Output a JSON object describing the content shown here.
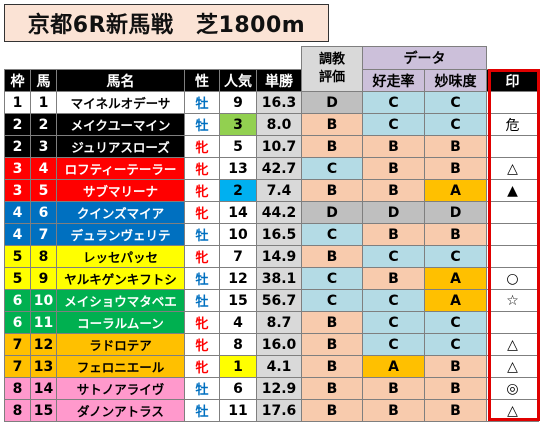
{
  "title": "京都6R新馬戦　芝1800m",
  "header": {
    "group_choukyou": [
      "調教",
      "評価"
    ],
    "group_data": "データ",
    "cols": {
      "waku": "枠",
      "uma": "馬",
      "name": "馬名",
      "sex": "性",
      "ninki": "人気",
      "tansho": "単勝",
      "koso": "好走率",
      "mimi": "妙味度",
      "mark": "印"
    }
  },
  "colors": {
    "waku": {
      "1": {
        "bg": "#ffffff",
        "fg": "#000000"
      },
      "2": {
        "bg": "#000000",
        "fg": "#ffffff"
      },
      "3": {
        "bg": "#ff0000",
        "fg": "#ffffff"
      },
      "4": {
        "bg": "#0070c0",
        "fg": "#ffffff"
      },
      "5": {
        "bg": "#ffff00",
        "fg": "#000000"
      },
      "6": {
        "bg": "#00b050",
        "fg": "#ffffff"
      },
      "7": {
        "bg": "#ffc000",
        "fg": "#000000"
      },
      "8": {
        "bg": "#ff99cc",
        "fg": "#000000"
      }
    },
    "sex": {
      "牡": "#0070c0",
      "牝": "#ff0000"
    },
    "ninki_highlight": {
      "2": "#00b0f0",
      "3": "#92d050",
      "1": "#ffff00"
    },
    "tansho_bg": "#d9d9d9",
    "grade": {
      "A": "#ffc000",
      "B": "#f8cbad",
      "C": "#b4dbe5",
      "D": "#bfbfbf"
    }
  },
  "rows": [
    {
      "waku": "1",
      "uma": "1",
      "name": "マイネルオデーサ",
      "sex": "牡",
      "ninki": "9",
      "tansho": "16.3",
      "eval": "D",
      "koso": "C",
      "mimi": "C",
      "mark": ""
    },
    {
      "waku": "2",
      "uma": "2",
      "name": "メイクユーマイン",
      "sex": "牡",
      "ninki": "3",
      "tansho": "8.0",
      "eval": "B",
      "koso": "C",
      "mimi": "C",
      "mark": "危"
    },
    {
      "waku": "2",
      "uma": "3",
      "name": "ジュリアスローズ",
      "sex": "牝",
      "ninki": "5",
      "tansho": "10.7",
      "eval": "B",
      "koso": "B",
      "mimi": "B",
      "mark": ""
    },
    {
      "waku": "3",
      "uma": "4",
      "name": "ロフティーテーラー",
      "sex": "牝",
      "ninki": "13",
      "tansho": "42.7",
      "eval": "C",
      "koso": "B",
      "mimi": "B",
      "mark": "△"
    },
    {
      "waku": "3",
      "uma": "5",
      "name": "サブマリーナ",
      "sex": "牝",
      "ninki": "2",
      "tansho": "7.4",
      "eval": "B",
      "koso": "B",
      "mimi": "A",
      "mark": "▲"
    },
    {
      "waku": "4",
      "uma": "6",
      "name": "クインズマイア",
      "sex": "牝",
      "ninki": "14",
      "tansho": "44.2",
      "eval": "D",
      "koso": "D",
      "mimi": "D",
      "mark": ""
    },
    {
      "waku": "4",
      "uma": "7",
      "name": "デュランヴェリテ",
      "sex": "牡",
      "ninki": "10",
      "tansho": "16.5",
      "eval": "C",
      "koso": "B",
      "mimi": "B",
      "mark": ""
    },
    {
      "waku": "5",
      "uma": "8",
      "name": "レッセパッセ",
      "sex": "牝",
      "ninki": "7",
      "tansho": "14.9",
      "eval": "B",
      "koso": "C",
      "mimi": "C",
      "mark": ""
    },
    {
      "waku": "5",
      "uma": "9",
      "name": "ヤルキゲンキフトシ",
      "sex": "牡",
      "ninki": "12",
      "tansho": "38.1",
      "eval": "C",
      "koso": "B",
      "mimi": "A",
      "mark": "○"
    },
    {
      "waku": "6",
      "uma": "10",
      "name": "メイショウマタベエ",
      "sex": "牡",
      "ninki": "15",
      "tansho": "56.7",
      "eval": "C",
      "koso": "C",
      "mimi": "A",
      "mark": "☆"
    },
    {
      "waku": "6",
      "uma": "11",
      "name": "コーラルムーン",
      "sex": "牝",
      "ninki": "4",
      "tansho": "8.7",
      "eval": "B",
      "koso": "C",
      "mimi": "C",
      "mark": ""
    },
    {
      "waku": "7",
      "uma": "12",
      "name": "ラドロテア",
      "sex": "牝",
      "ninki": "8",
      "tansho": "16.0",
      "eval": "B",
      "koso": "C",
      "mimi": "C",
      "mark": "△"
    },
    {
      "waku": "7",
      "uma": "13",
      "name": "フェロニエール",
      "sex": "牝",
      "ninki": "1",
      "tansho": "4.1",
      "eval": "B",
      "koso": "A",
      "mimi": "B",
      "mark": "△"
    },
    {
      "waku": "8",
      "uma": "14",
      "name": "サトノアライヴ",
      "sex": "牡",
      "ninki": "6",
      "tansho": "12.9",
      "eval": "B",
      "koso": "B",
      "mimi": "B",
      "mark": "◎"
    },
    {
      "waku": "8",
      "uma": "15",
      "name": "ダノンアトラス",
      "sex": "牡",
      "ninki": "11",
      "tansho": "17.6",
      "eval": "B",
      "koso": "B",
      "mimi": "B",
      "mark": "△"
    }
  ]
}
